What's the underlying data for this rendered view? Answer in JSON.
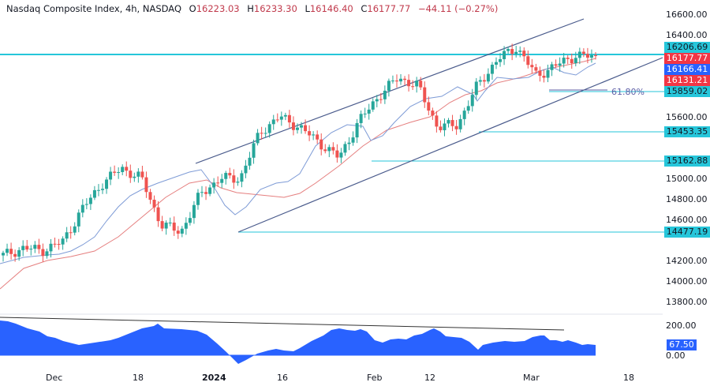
{
  "header": {
    "symbol": "Nasdaq Composite Index, 4h, NASDAQ",
    "open_label": "O",
    "open": "16223.03",
    "high_label": "H",
    "high": "16233.30",
    "low_label": "L",
    "low": "16146.40",
    "close_label": "C",
    "close": "16177.77",
    "change": "−44.11 (−0.27%)"
  },
  "price_axis": {
    "ticks": [
      "16600.00",
      "16400.00",
      "15600.00",
      "15000.00",
      "14800.00",
      "14600.00",
      "14200.00",
      "14000.00",
      "13800.00"
    ],
    "tags": [
      {
        "value": "16206.69",
        "color": "cyan"
      },
      {
        "value": "16177.77",
        "color": "red"
      },
      {
        "value": "16166.41",
        "color": "blue"
      },
      {
        "value": "16131.21",
        "color": "red"
      },
      {
        "value": "15859.02",
        "color": "cyan"
      },
      {
        "value": "15453.35",
        "color": "cyan"
      },
      {
        "value": "15162.88",
        "color": "cyan"
      },
      {
        "value": "14477.19",
        "color": "cyan"
      }
    ]
  },
  "fib_label": "61.80%",
  "oscillator": {
    "ticks": [
      "200.00",
      "0.00"
    ],
    "current": "67.50"
  },
  "time_axis": [
    "Dec",
    "18",
    "2024",
    "16",
    "Feb",
    "12",
    "Mar",
    "18"
  ],
  "colors": {
    "up": "#26a69a",
    "down": "#ef5350",
    "ma_fast": "#7e9bd6",
    "ma_slow": "#e57f7f",
    "channel": "#4a5b8c",
    "level": "#26c6da",
    "oscillator": "#2962ff"
  },
  "chart_data": [
    {
      "type": "line",
      "title": "Nasdaq Composite Index, 4h, NASDAQ (candlestick)",
      "ohlc_last": {
        "open": 16223.03,
        "high": 16233.3,
        "low": 16146.4,
        "close": 16177.77,
        "change": -44.11,
        "change_pct": -0.27
      },
      "x": [
        "Dec",
        "18",
        "2024",
        "16",
        "Feb",
        "12",
        "Mar"
      ],
      "approx_close_path": [
        14250,
        14320,
        14300,
        14380,
        14700,
        14950,
        15100,
        15000,
        14550,
        14480,
        14850,
        15000,
        15000,
        15450,
        15600,
        15500,
        15350,
        15200,
        15550,
        15800,
        15980,
        15900,
        15500,
        15520,
        15900,
        16150,
        16280,
        16000,
        16100,
        16200,
        16178
      ],
      "horizontal_levels": [
        16206.69,
        15859.02,
        15453.35,
        15162.88,
        14477.19
      ],
      "moving_averages_last": [
        16166.41,
        16131.21
      ],
      "fib_retracement": "61.80%",
      "ylim": [
        13800,
        16700
      ],
      "yticks": [
        13800,
        14000,
        14200,
        14400,
        14600,
        14800,
        15000,
        15200,
        15400,
        15600,
        15800,
        16000,
        16200,
        16400,
        16600
      ],
      "annotations": [
        "Ascending channel",
        "Horizontal resistance at 16206.69"
      ]
    },
    {
      "type": "area",
      "title": "Oscillator",
      "current": 67.5,
      "ylim": [
        -80,
        230
      ],
      "yticks": [
        0,
        200
      ],
      "annotations": [
        "Descending trendline (bearish divergence)"
      ]
    }
  ]
}
